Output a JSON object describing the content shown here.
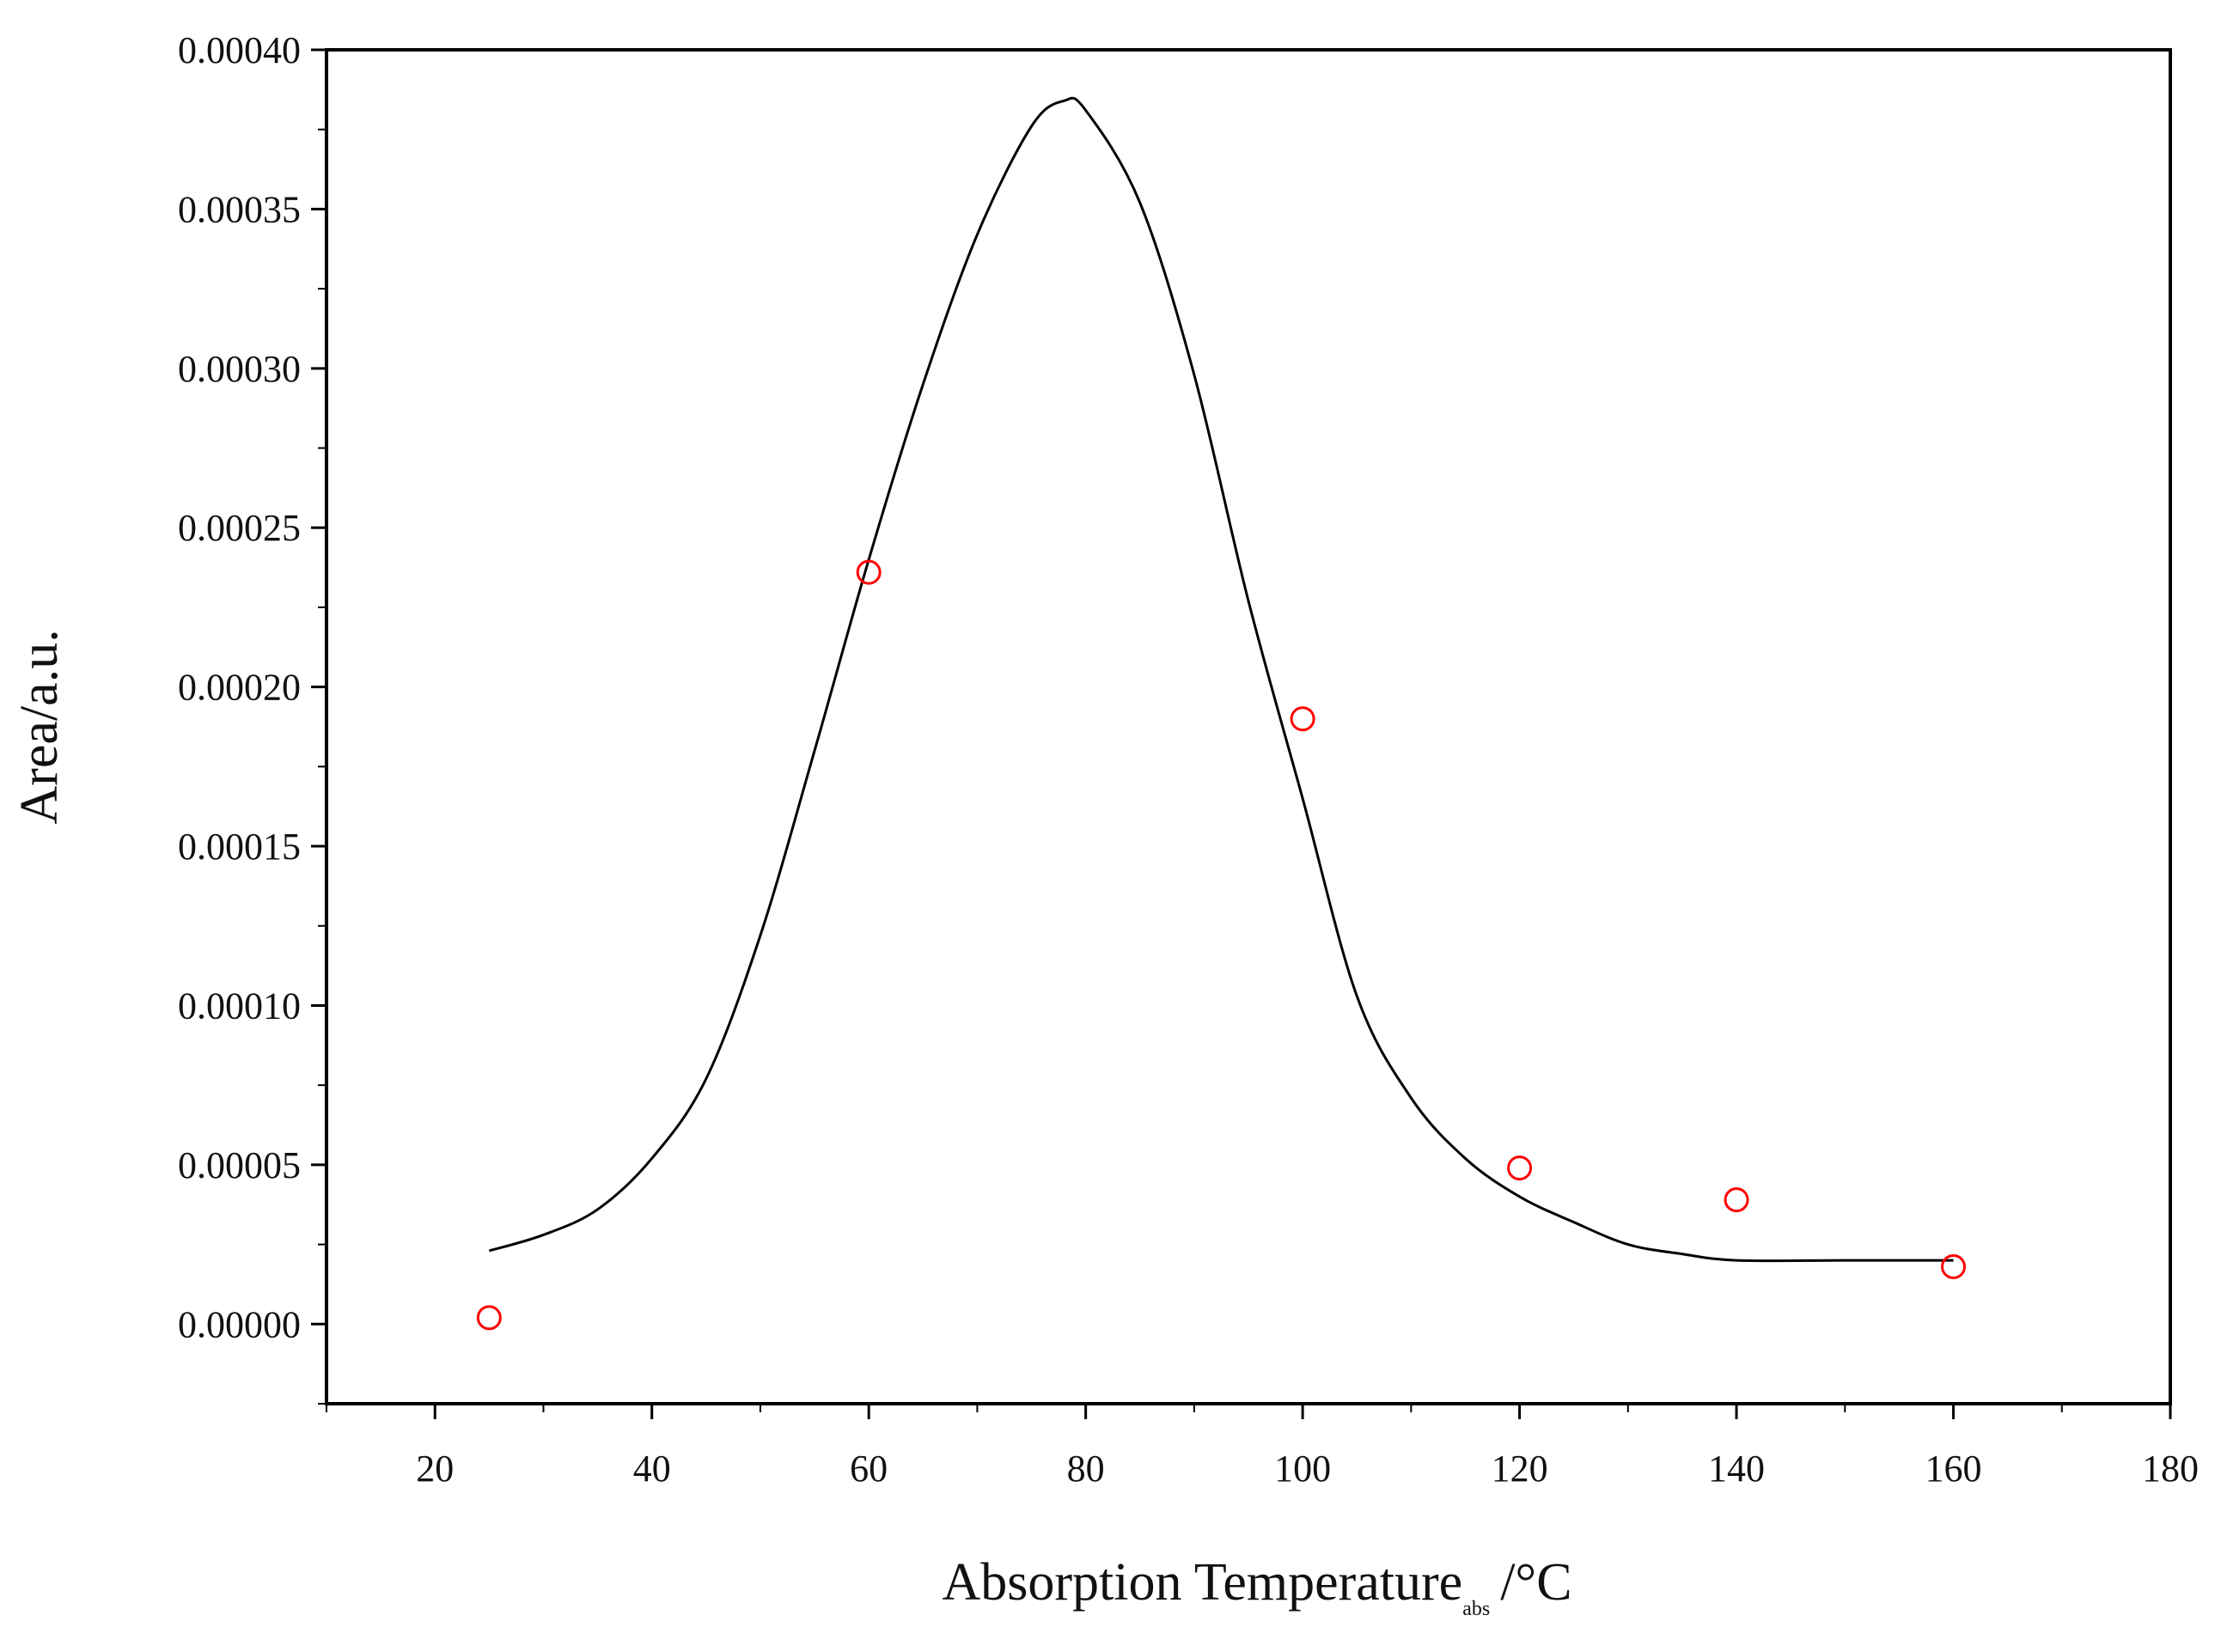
{
  "chart_data": {
    "type": "scatter",
    "xlabel": "Absorption Temperature",
    "xlabel_sub": "abs",
    "xlabel_unit": "/°C",
    "ylabel": "Area/a.u.",
    "xlim": [
      10,
      180
    ],
    "ylim": [
      -2.5e-05,
      0.0004
    ],
    "x_ticks": [
      "20",
      "40",
      "60",
      "80",
      "100",
      "120",
      "140",
      "160",
      "180"
    ],
    "y_ticks": [
      "0.00000",
      "0.00005",
      "0.00010",
      "0.00015",
      "0.00020",
      "0.00025",
      "0.00030",
      "0.00035",
      "0.00040"
    ],
    "grid": false,
    "series": [
      {
        "type": "scatter",
        "marker": "open-circle",
        "color": "#ff0000",
        "x": [
          25,
          60,
          100,
          120,
          140,
          160
        ],
        "y": [
          2e-06,
          0.000236,
          0.00019,
          4.9e-05,
          3.9e-05,
          1.8e-05
        ]
      },
      {
        "type": "line",
        "color": "#000000",
        "x": [
          25,
          30,
          35,
          40,
          45,
          50,
          55,
          60,
          65,
          70,
          75,
          78,
          80,
          85,
          90,
          95,
          100,
          105,
          110,
          115,
          120,
          125,
          130,
          135,
          140,
          150,
          160
        ],
        "y": [
          2.3e-05,
          2.8e-05,
          3.6e-05,
          5.2e-05,
          7.7e-05,
          0.000122,
          0.00018,
          0.00024,
          0.000295,
          0.000342,
          0.000376,
          0.000384,
          0.000381,
          0.000352,
          0.000298,
          0.000227,
          0.000165,
          0.000103,
          7.1e-05,
          5.2e-05,
          4e-05,
          3.2e-05,
          2.5e-05,
          2.2e-05,
          2e-05,
          2e-05,
          2e-05
        ]
      }
    ]
  }
}
